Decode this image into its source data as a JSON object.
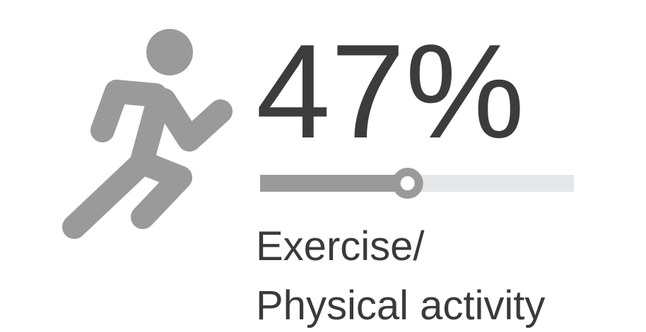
{
  "chart_data": {
    "type": "progress",
    "categories": [
      "Exercise/\nPhysical activity"
    ],
    "values": [
      47
    ],
    "value_labels": [
      "47%"
    ],
    "xlim": [
      0,
      100
    ],
    "colors": {
      "filled": "#9a9a9b",
      "track": "#e6e7e8"
    }
  }
}
